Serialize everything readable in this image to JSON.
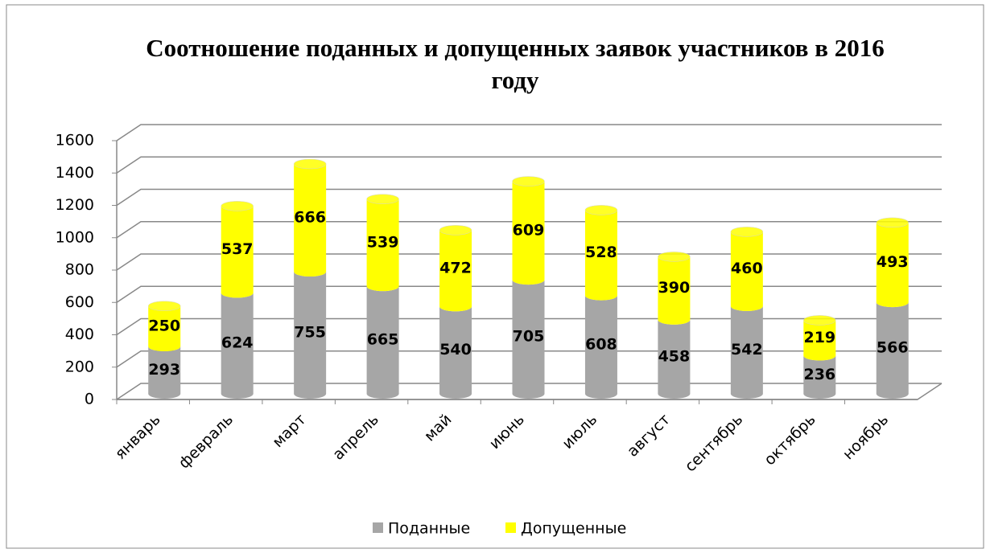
{
  "chart_data": {
    "type": "bar",
    "stacked": true,
    "title": "Соотношение поданных и допущенных заявок участников в 2016 году",
    "categories": [
      "январь",
      "февраль",
      "март",
      "апрель",
      "май",
      "июнь",
      "июль",
      "август",
      "сентябрь",
      "октябрь",
      "ноябрь"
    ],
    "series": [
      {
        "name": "Поданные",
        "color": "#a6a6a6",
        "values": [
          293,
          624,
          755,
          665,
          540,
          705,
          608,
          458,
          542,
          236,
          566
        ]
      },
      {
        "name": "Допущенные",
        "color": "#ffff00",
        "values": [
          250,
          537,
          666,
          539,
          472,
          609,
          528,
          390,
          460,
          219,
          493
        ]
      }
    ],
    "ylim": [
      0,
      1600
    ],
    "yticks": [
      0,
      200,
      400,
      600,
      800,
      1000,
      1200,
      1400,
      1600
    ],
    "grid": true,
    "legend": "bottom"
  }
}
